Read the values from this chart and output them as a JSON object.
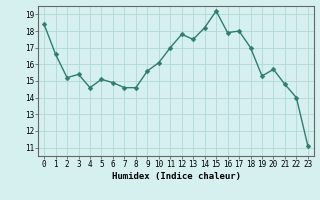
{
  "x": [
    0,
    1,
    2,
    3,
    4,
    5,
    6,
    7,
    8,
    9,
    10,
    11,
    12,
    13,
    14,
    15,
    16,
    17,
    18,
    19,
    20,
    21,
    22,
    23
  ],
  "y": [
    18.4,
    16.6,
    15.2,
    15.4,
    14.6,
    15.1,
    14.9,
    14.6,
    14.6,
    15.6,
    16.1,
    17.0,
    17.8,
    17.5,
    18.2,
    19.2,
    17.9,
    18.0,
    17.0,
    15.3,
    15.7,
    14.8,
    14.0,
    11.1
  ],
  "line_color": "#2e7d6e",
  "marker": "D",
  "marker_size": 2.5,
  "bg_color": "#d6f0f0",
  "grid_color": "#b0d8d8",
  "xlabel": "Humidex (Indice chaleur)",
  "ylim": [
    10.5,
    19.5
  ],
  "xlim": [
    -0.5,
    23.5
  ],
  "yticks": [
    11,
    12,
    13,
    14,
    15,
    16,
    17,
    18,
    19
  ],
  "xticks": [
    0,
    1,
    2,
    3,
    4,
    5,
    6,
    7,
    8,
    9,
    10,
    11,
    12,
    13,
    14,
    15,
    16,
    17,
    18,
    19,
    20,
    21,
    22,
    23
  ],
  "xlabel_fontsize": 6.5,
  "tick_fontsize": 5.5
}
